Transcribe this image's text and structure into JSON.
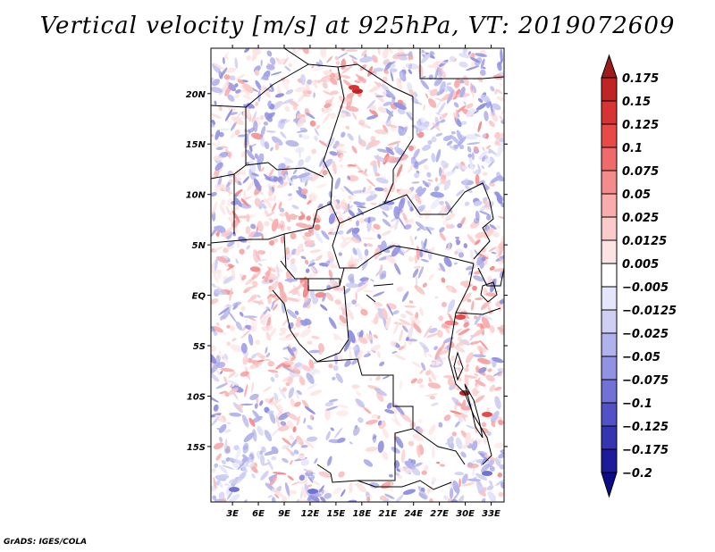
{
  "chart_data": {
    "type": "heatmap",
    "title": "Vertical velocity [m/s] at 925hPa, VT: 2019072609",
    "field": "Vertical velocity",
    "units": "m/s",
    "level": "925hPa",
    "valid_time": "2019072609",
    "x_ticks": [
      "3E",
      "6E",
      "9E",
      "12E",
      "15E",
      "18E",
      "21E",
      "24E",
      "27E",
      "30E",
      "33E"
    ],
    "y_ticks": [
      "20N",
      "15N",
      "10N",
      "5N",
      "EQ",
      "5S",
      "10S",
      "15S"
    ],
    "x_range_deg_east": [
      0.5,
      34.5
    ],
    "y_range_deg": [
      -20.5,
      24.5
    ],
    "colorbar": {
      "levels": [
        "0.175",
        "0.15",
        "0.125",
        "0.1",
        "0.075",
        "0.05",
        "0.025",
        "0.0125",
        "0.005",
        "-0.005",
        "-0.0125",
        "-0.025",
        "-0.05",
        "-0.075",
        "-0.1",
        "-0.125",
        "-0.175",
        "-0.2"
      ],
      "colors": [
        "#a01b1b",
        "#c02424",
        "#d83434",
        "#e84a4a",
        "#ef6a6a",
        "#f48c8c",
        "#f8acac",
        "#fbcaca",
        "#fde4e4",
        "#ffffff",
        "#e6e6fa",
        "#cfcff4",
        "#b1b1ec",
        "#9292e2",
        "#7272d6",
        "#5252c6",
        "#3535b2",
        "#1d1d9c",
        "#0c0c88"
      ]
    }
  },
  "credit": "GrADS: IGES/COLA"
}
